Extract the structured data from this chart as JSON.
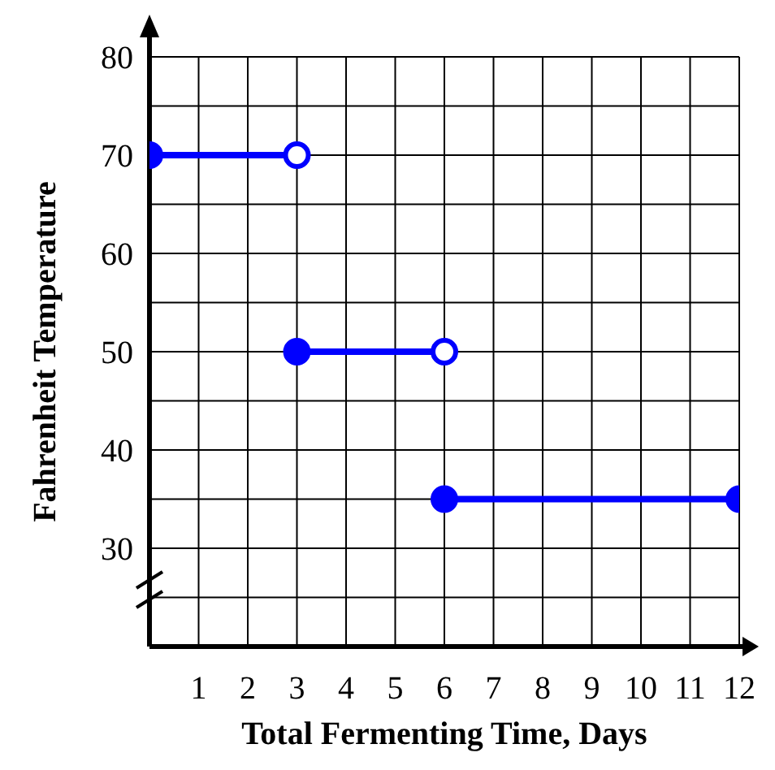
{
  "chart_data": {
    "type": "line",
    "xlabel": "Total Fermenting Time, Days",
    "ylabel": "Fahrenheit Temperature",
    "xlim": [
      0,
      12
    ],
    "xticks": [
      1,
      2,
      3,
      4,
      5,
      6,
      7,
      8,
      9,
      10,
      11,
      12
    ],
    "ylim": [
      20,
      80
    ],
    "yticks": [
      {
        "value": 25,
        "label": null
      },
      30,
      {
        "value": 35,
        "label": null
      },
      40,
      {
        "value": 45,
        "label": null
      },
      50,
      {
        "value": 55,
        "label": null
      },
      60,
      {
        "value": 65,
        "label": null
      },
      70,
      {
        "value": 75,
        "label": null
      },
      80
    ],
    "grid": true,
    "marker": "none",
    "line_style": "solid",
    "series": [
      {
        "color": "#0000ff",
        "x": [
          0,
          3
        ],
        "values": [
          70,
          70
        ]
      },
      {
        "color": "#0000ff",
        "x": [
          3,
          6
        ],
        "values": [
          50,
          50
        ]
      },
      {
        "color": "#0000ff",
        "x": [
          6,
          12
        ],
        "values": [
          35,
          35
        ]
      },
      {
        "type": "scatter",
        "color": "#0000ff",
        "marker": "circle",
        "x": [
          0,
          3,
          6,
          12
        ],
        "values": [
          70,
          50,
          35,
          35
        ]
      },
      {
        "type": "scatter",
        "color": "#0000ff",
        "colors": [
          "#ffffff",
          "#ffffff"
        ],
        "marker": "circle",
        "x": [
          3,
          6
        ],
        "values": [
          70,
          50
        ]
      }
    ]
  }
}
